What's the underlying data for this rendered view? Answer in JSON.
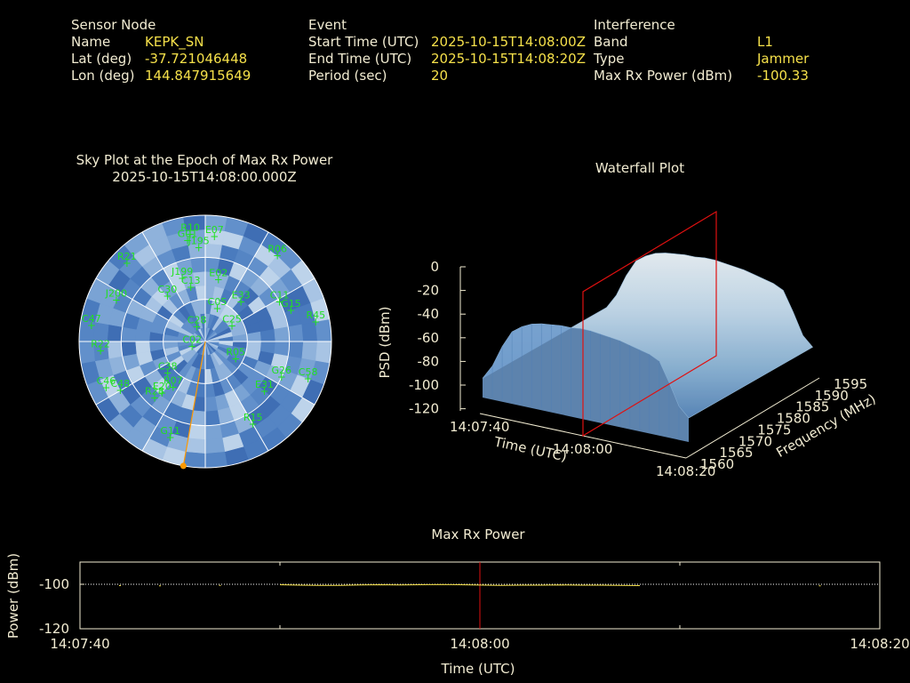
{
  "header": {
    "sensor": {
      "heading": "Sensor Node",
      "name_label": "Name",
      "name_value": "KEPK_SN",
      "lat_label": "Lat (deg)",
      "lat_value": "-37.721046448",
      "lon_label": "Lon (deg)",
      "lon_value": "144.847915649"
    },
    "event": {
      "heading": "Event",
      "start_label": "Start Time (UTC)",
      "start_value": "2025-10-15T14:08:00Z",
      "end_label": "End Time (UTC)",
      "end_value": "2025-10-15T14:08:20Z",
      "period_label": "Period (sec)",
      "period_value": "20"
    },
    "interference": {
      "heading": "Interference",
      "band_label": "Band",
      "band_value": "L1",
      "type_label": "Type",
      "type_value": "Jammer",
      "maxrx_label": "Max Rx Power (dBm)",
      "maxrx_value": "-100.33"
    }
  },
  "colors": {
    "label": "#f2ecd2",
    "value": "#f5e04a",
    "sat": "#22e022",
    "marker": "#ff9900",
    "red": "#e01010"
  },
  "chart_data": [
    {
      "type": "scatter",
      "title": "Sky Plot at the Epoch of Max Rx Power",
      "subtitle": "2025-10-15T14:08:00.000Z",
      "projection": "polar",
      "satellites": [
        {
          "id": "R10",
          "az": 352,
          "el": 13
        },
        {
          "id": "G01",
          "az": 350,
          "el": 17
        },
        {
          "id": "E07",
          "az": 5,
          "el": 15
        },
        {
          "id": "J195",
          "az": 356,
          "el": 23
        },
        {
          "id": "R21",
          "az": 315,
          "el": 11
        },
        {
          "id": "R06",
          "az": 40,
          "el": 10
        },
        {
          "id": "E02",
          "az": 12,
          "el": 45
        },
        {
          "id": "J199",
          "az": 340,
          "el": 42
        },
        {
          "id": "J200",
          "az": 295,
          "el": 20
        },
        {
          "id": "C13",
          "az": 345,
          "el": 50
        },
        {
          "id": "C30",
          "az": 320,
          "el": 48
        },
        {
          "id": "C11",
          "az": 62,
          "el": 30
        },
        {
          "id": "G15",
          "az": 70,
          "el": 25
        },
        {
          "id": "R45",
          "az": 80,
          "el": 10
        },
        {
          "id": "E33",
          "az": 42,
          "el": 52
        },
        {
          "id": "C05",
          "az": 20,
          "el": 65
        },
        {
          "id": "C28",
          "az": 330,
          "el": 78
        },
        {
          "id": "C25",
          "az": 60,
          "el": 68
        },
        {
          "id": "C47",
          "az": 278,
          "el": 8
        },
        {
          "id": "R22",
          "az": 265,
          "el": 15
        },
        {
          "id": "C02",
          "az": 250,
          "el": 80
        },
        {
          "id": "R05",
          "az": 120,
          "el": 65
        },
        {
          "id": "G26",
          "az": 115,
          "el": 30
        },
        {
          "id": "C58",
          "az": 110,
          "el": 12
        },
        {
          "id": "C38",
          "az": 230,
          "el": 55
        },
        {
          "id": "C46",
          "az": 245,
          "el": 12
        },
        {
          "id": "C48",
          "az": 240,
          "el": 20
        },
        {
          "id": "R07",
          "az": 215,
          "el": 50
        },
        {
          "id": "R28",
          "az": 222,
          "el": 36
        },
        {
          "id": "E20",
          "az": 220,
          "el": 42
        },
        {
          "id": "R15",
          "az": 150,
          "el": 22
        },
        {
          "id": "G11",
          "az": 200,
          "el": 17
        },
        {
          "id": "E31",
          "az": 130,
          "el": 35
        }
      ],
      "direction_az": 190
    },
    {
      "type": "area",
      "title": "Waterfall Plot",
      "xlabel": "Time (UTC)",
      "ylabel": "Frequency (MHz)",
      "zlabel": "PSD (dBm)",
      "x_ticks": [
        "14:07:40",
        "14:08:00",
        "14:08:20"
      ],
      "y_ticks": [
        "1560",
        "1565",
        "1570",
        "1575",
        "1580",
        "1585",
        "1590",
        "1595"
      ],
      "z_ticks": [
        "0",
        "-20",
        "-40",
        "-60",
        "-80",
        "-100",
        "-120"
      ],
      "zlim": [
        -120,
        0
      ],
      "surface_profile_dbm": [
        -92,
        -80,
        -62,
        -48,
        -42,
        -38,
        -36,
        -35,
        -34,
        -34,
        -33,
        -33,
        -34,
        -35,
        -36,
        -38,
        -40,
        -42,
        -46,
        -62,
        -80,
        -88
      ],
      "marker_time": "14:08:00"
    },
    {
      "type": "line",
      "title": "Max Rx Power",
      "xlabel": "Time (UTC)",
      "ylabel": "Power (dBm)",
      "x_ticks": [
        "14:07:40",
        "14:08:00",
        "14:08:20"
      ],
      "y_ticks": [
        "-100",
        "-120"
      ],
      "xlim_sec": [
        0,
        40
      ],
      "ylim": [
        -120,
        -90
      ],
      "reference_line": -100,
      "marker_time_sec": 20,
      "series": [
        {
          "values": [
            [
              2.0,
              -100.6
            ],
            [
              4.0,
              -100.7
            ],
            [
              7.0,
              -100.5
            ],
            [
              10.0,
              -100.2
            ],
            [
              11.0,
              -100.4
            ],
            [
              12.0,
              -100.5
            ],
            [
              13.0,
              -100.5
            ],
            [
              14.0,
              -100.3
            ],
            [
              15.0,
              -100.2
            ],
            [
              16.0,
              -100.3
            ],
            [
              17.0,
              -100.2
            ],
            [
              18.0,
              -100.1
            ],
            [
              19.0,
              -100.2
            ],
            [
              20.0,
              -100.33
            ],
            [
              21.0,
              -100.5
            ],
            [
              22.0,
              -100.4
            ],
            [
              23.0,
              -100.4
            ],
            [
              24.0,
              -100.3
            ],
            [
              25.0,
              -100.4
            ],
            [
              26.0,
              -100.4
            ],
            [
              27.0,
              -100.5
            ],
            [
              28.0,
              -100.6
            ],
            [
              37.0,
              -100.7
            ]
          ]
        }
      ]
    }
  ]
}
